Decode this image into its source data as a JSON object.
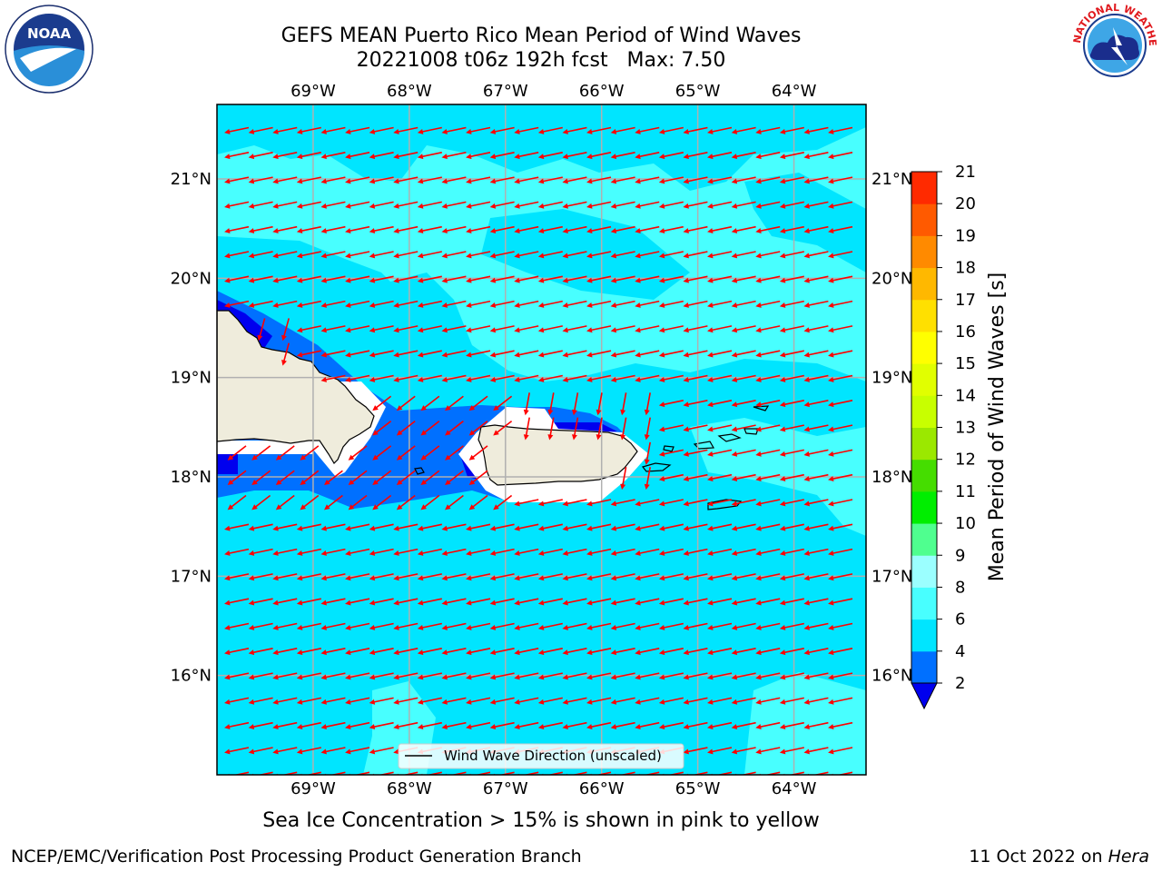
{
  "title": {
    "line1": "GEFS MEAN Puerto Rico Mean Period of Wind Waves",
    "line2": "20221008 t06z 192h fcst   Max: 7.50"
  },
  "logos": {
    "left": {
      "icon": "noaa-logo",
      "text": "NOAA"
    },
    "right": {
      "icon": "nws-logo",
      "text": "NATIONAL WEATHER SERVICE"
    }
  },
  "map": {
    "lon_labels": [
      "69°W",
      "68°W",
      "67°W",
      "66°W",
      "65°W",
      "64°W"
    ],
    "lat_labels": [
      "21°N",
      "20°N",
      "19°N",
      "18°N",
      "17°N",
      "16°N"
    ],
    "lon_range": [
      -70.0,
      -63.25
    ],
    "lat_range": [
      15.0,
      21.75
    ],
    "grid": true,
    "arrow_color": "#ff0000",
    "arrow_direction": "toward west-southwest",
    "legend": {
      "label": "Wind Wave Direction (unscaled)",
      "placement": "bottom-center"
    }
  },
  "colorbar": {
    "label": "Mean Period of Wind Waves [s]",
    "ticks": [
      "2",
      "4",
      "6",
      "8",
      "9",
      "10",
      "11",
      "12",
      "13",
      "14",
      "15",
      "16",
      "17",
      "18",
      "19",
      "20",
      "21"
    ],
    "colors": [
      "#0070ff",
      "#00e5ff",
      "#48ffff",
      "#9bffff",
      "#4fff8f",
      "#00ee00",
      "#45dd00",
      "#9be800",
      "#c8ff00",
      "#e1ff00",
      "#ffff00",
      "#ffe000",
      "#ffb800",
      "#ff8a00",
      "#ff5a00",
      "#ff2a00"
    ],
    "under_color": "#0000ee"
  },
  "note": "Sea Ice Concentration > 15% is shown in pink to yellow",
  "footer": {
    "left": "NCEP/EMC/Verification Post Processing Product Generation Branch",
    "date": "11 Oct 2022 on ",
    "host": "Hera"
  }
}
